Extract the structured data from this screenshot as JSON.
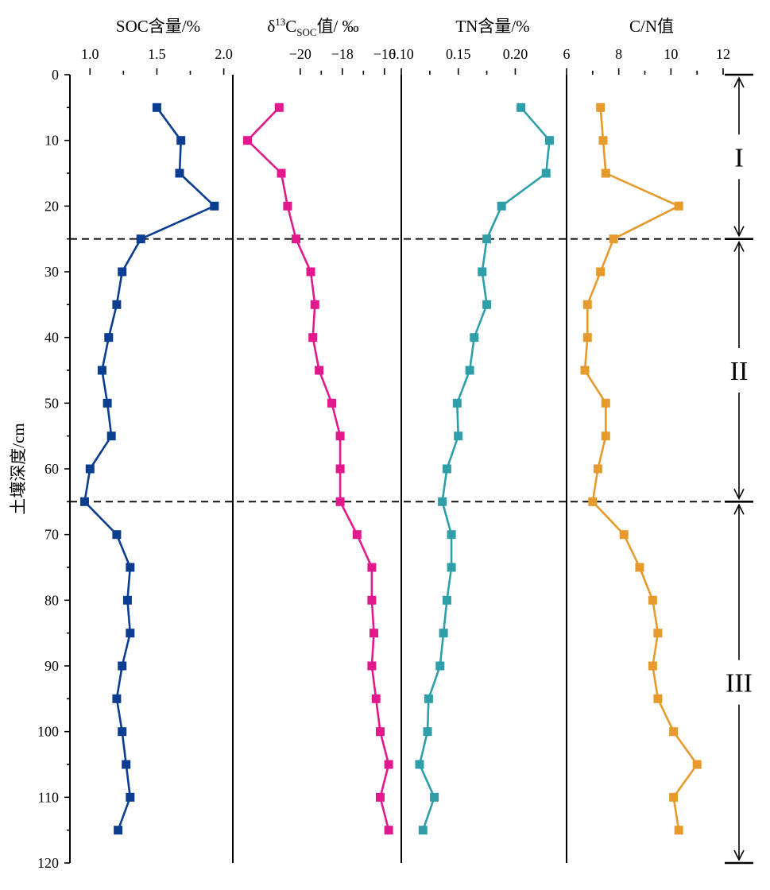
{
  "chart_data": {
    "type": "line",
    "ylabel": "土壤深度/cm",
    "y_axis": {
      "range": [
        0,
        120
      ],
      "inverted": true,
      "ticks": [
        0,
        10,
        20,
        30,
        40,
        50,
        60,
        70,
        80,
        90,
        100,
        110,
        120
      ],
      "tick_labels": [
        "0",
        "10",
        "20",
        "30",
        "40",
        "50",
        "60",
        "70",
        "80",
        "90",
        "100",
        "110",
        "120"
      ]
    },
    "depth": [
      5,
      10,
      15,
      20,
      25,
      30,
      35,
      40,
      45,
      50,
      55,
      60,
      65,
      70,
      75,
      80,
      85,
      90,
      95,
      100,
      105,
      110,
      115
    ],
    "panels": [
      {
        "id": "soc",
        "title": "SOC含量/%",
        "xlim": [
          0.85,
          2.05
        ],
        "ticks": [
          1.0,
          1.5,
          2.0
        ],
        "tick_labels": [
          "1.0",
          "1.5",
          "2.0"
        ],
        "color": "#0b3d91",
        "values": [
          1.5,
          1.68,
          1.67,
          1.93,
          1.38,
          1.24,
          1.2,
          1.14,
          1.09,
          1.13,
          1.16,
          1.0,
          0.96,
          1.2,
          1.3,
          1.28,
          1.3,
          1.24,
          1.2,
          1.24,
          1.27,
          1.3,
          1.21
        ]
      },
      {
        "id": "d13c",
        "title_parts": {
          "prefix": "δ",
          "sup": "13",
          "main": "C",
          "sub": "SOC",
          "suffix": "值/ ‰"
        },
        "xlim": [
          -23.2,
          -15.2
        ],
        "ticks": [
          -20,
          -18,
          -16
        ],
        "tick_labels": [
          "−20",
          "−18",
          "−16"
        ],
        "color": "#e2188c",
        "values": [
          -21.0,
          -22.5,
          -20.9,
          -20.6,
          -20.2,
          -19.5,
          -19.3,
          -19.4,
          -19.1,
          -18.5,
          -18.1,
          -18.1,
          -18.1,
          -17.3,
          -16.6,
          -16.6,
          -16.5,
          -16.6,
          -16.4,
          -16.2,
          -15.8,
          -16.2,
          -15.8
        ]
      },
      {
        "id": "tn",
        "title": "TN含量/%",
        "xlim": [
          0.1,
          0.245
        ],
        "ticks": [
          0.1,
          0.15,
          0.2
        ],
        "tick_labels": [
          "0.10",
          "0.15",
          "0.20"
        ],
        "color": "#2e9ea8",
        "values": [
          0.205,
          0.23,
          0.227,
          0.188,
          0.175,
          0.171,
          0.175,
          0.164,
          0.16,
          0.149,
          0.15,
          0.14,
          0.136,
          0.144,
          0.144,
          0.14,
          0.137,
          0.134,
          0.124,
          0.123,
          0.116,
          0.129,
          0.119
        ]
      },
      {
        "id": "cn",
        "title": "C/N值",
        "xlim": [
          6,
          12
        ],
        "ticks": [
          6,
          8,
          10,
          12
        ],
        "tick_labels": [
          "6",
          "8",
          "10",
          "12"
        ],
        "color": "#e59a2b",
        "values": [
          7.3,
          7.4,
          7.5,
          10.3,
          7.8,
          7.3,
          6.8,
          6.8,
          6.7,
          7.5,
          7.5,
          7.2,
          7.0,
          8.2,
          8.8,
          9.3,
          9.5,
          9.3,
          9.5,
          10.1,
          11.0,
          10.1,
          10.3
        ]
      }
    ],
    "zones": [
      {
        "label": "I",
        "from": 0,
        "to": 25
      },
      {
        "label": "II",
        "from": 25,
        "to": 65
      },
      {
        "label": "III",
        "from": 65,
        "to": 120
      }
    ],
    "boundaries": [
      25,
      65
    ]
  }
}
